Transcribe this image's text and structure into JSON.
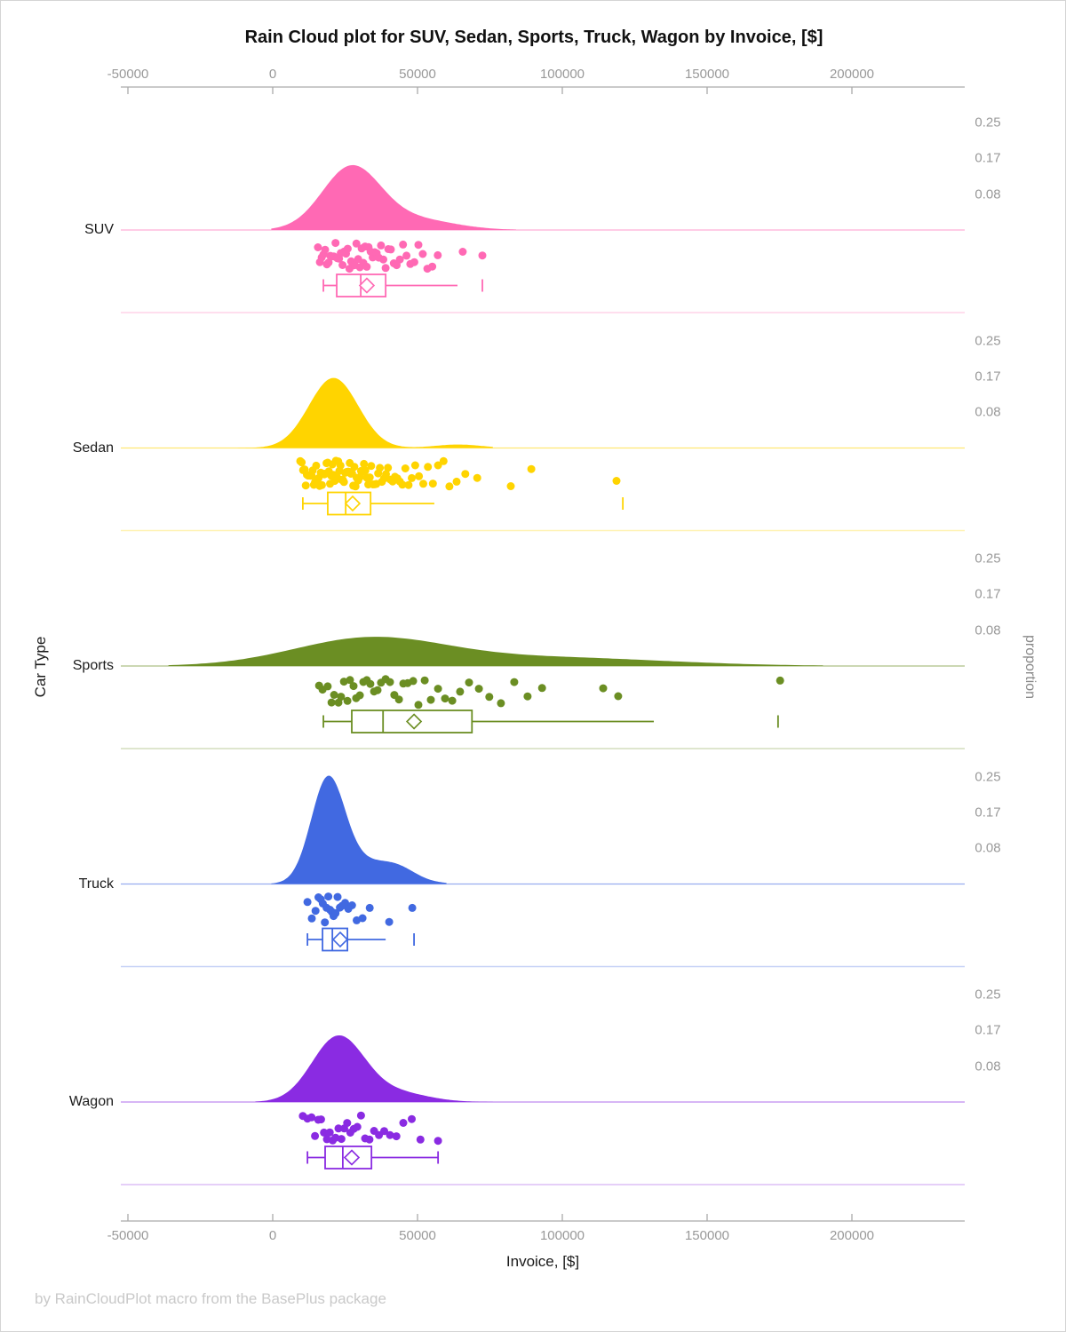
{
  "title": "Rain Cloud plot for SUV, Sedan, Sports, Truck, Wagon by Invoice, [$]",
  "footer": "by RainCloudPlot macro from the BasePlus package",
  "y_axis_label": "Car Type",
  "proportion_axis_label": "proportion",
  "chart_data": {
    "type": "raincloud",
    "x_axis": {
      "label": "Invoice, [$]",
      "ticks": [
        {
          "value": -50000,
          "label": "-50000"
        },
        {
          "value": 0,
          "label": "0"
        },
        {
          "value": 50000,
          "label": "50000"
        },
        {
          "value": 100000,
          "label": "100000"
        },
        {
          "value": 150000,
          "label": "150000"
        },
        {
          "value": 200000,
          "label": "200000"
        }
      ]
    },
    "proportion_ticks": [
      {
        "value": 0.25,
        "label": "0.25"
      },
      {
        "value": 0.17,
        "label": "0.17"
      },
      {
        "value": 0.08,
        "label": "0.08"
      }
    ],
    "series": [
      {
        "label": "SUV",
        "color": "#FF69B4",
        "density": {
          "components": [
            {
              "mu": 27000,
              "sd": 10000,
              "w": 1
            },
            {
              "mu": 48000,
              "sd": 14000,
              "w": 0.18
            }
          ],
          "peak_proportion": 0.151,
          "clip": [
            -500,
            84000
          ]
        },
        "points": [
          15600,
          16300,
          16900,
          17500,
          18100,
          18700,
          19300,
          19900,
          20500,
          21100,
          21700,
          22300,
          22900,
          23500,
          24100,
          24700,
          25300,
          25900,
          26500,
          27100,
          27700,
          28300,
          28900,
          29500,
          30100,
          30700,
          31300,
          31900,
          32500,
          33100,
          33800,
          34500,
          35200,
          35900,
          36600,
          37400,
          38200,
          39000,
          39900,
          40800,
          41800,
          42800,
          43900,
          45000,
          46200,
          47500,
          48900,
          50300,
          51800,
          53400,
          55100,
          57000,
          65600,
          72400
        ],
        "box": {
          "whisker_low": 17500,
          "q1": 22100,
          "median": 30400,
          "q3": 39000,
          "whisker_high": 63800,
          "mean": 32500,
          "outliers": [
            72400
          ],
          "cap_low": true,
          "cap_high": false
        }
      },
      {
        "label": "Sedan",
        "color": "#FFD400",
        "density": {
          "components": [
            {
              "mu": 21000,
              "sd": 8500,
              "w": 1
            },
            {
              "mu": 64000,
              "sd": 8000,
              "w": 0.05
            }
          ],
          "peak_proportion": 0.163,
          "clip": [
            -13500,
            76000
          ]
        },
        "points": [
          9500,
          10000,
          10500,
          11000,
          11400,
          11800,
          12200,
          12600,
          13000,
          13400,
          13800,
          14200,
          14600,
          15000,
          15400,
          15800,
          16200,
          16600,
          17000,
          17400,
          17800,
          18200,
          18600,
          19000,
          19400,
          19800,
          20200,
          20600,
          21000,
          21400,
          21800,
          22200,
          22600,
          23000,
          23400,
          23800,
          24200,
          24600,
          25000,
          25400,
          25800,
          26200,
          26600,
          27000,
          27400,
          27800,
          28200,
          28600,
          29000,
          29500,
          30000,
          30500,
          31000,
          31500,
          32000,
          32500,
          33000,
          33500,
          34000,
          34600,
          35200,
          35800,
          36400,
          37000,
          37700,
          38400,
          39100,
          39800,
          40600,
          41400,
          42200,
          43000,
          43900,
          44800,
          45800,
          46900,
          48000,
          49200,
          50500,
          52000,
          53600,
          55300,
          57100,
          59000,
          61000,
          63500,
          66500,
          70600,
          82200,
          89300,
          118700
        ],
        "box": {
          "whisker_low": 10400,
          "q1": 19000,
          "median": 25200,
          "q3": 33800,
          "whisker_high": 55800,
          "mean": 27600,
          "outliers": [
            120900
          ],
          "cap_low": true,
          "cap_high": false
        }
      },
      {
        "label": "Sports",
        "color": "#6B8E23",
        "density": {
          "components": [
            {
              "mu": 33000,
              "sd": 26000,
              "w": 1
            },
            {
              "mu": 95000,
              "sd": 40000,
              "w": 0.32
            }
          ],
          "peak_proportion": 0.068,
          "clip": [
            -36000,
            190000
          ]
        },
        "points": [
          16000,
          17200,
          19000,
          20300,
          21200,
          22700,
          23600,
          24600,
          25800,
          26700,
          27900,
          28800,
          30100,
          31300,
          32500,
          33700,
          35000,
          36200,
          37400,
          39000,
          40500,
          42000,
          43600,
          45100,
          46600,
          48500,
          50300,
          52500,
          54600,
          57100,
          59500,
          62000,
          64700,
          67800,
          71200,
          74800,
          78800,
          83400,
          88000,
          93000,
          114100,
          119300,
          175200
        ],
        "box": {
          "whisker_low": 17500,
          "q1": 27300,
          "median": 38100,
          "q3": 68800,
          "whisker_high": 131600,
          "mean": 48800,
          "outliers": [
            174500
          ],
          "cap_low": true,
          "cap_high": false
        }
      },
      {
        "label": "Truck",
        "color": "#4169E1",
        "density": {
          "components": [
            {
              "mu": 19000,
              "sd": 5800,
              "w": 1
            },
            {
              "mu": 33000,
              "sd": 11000,
              "w": 0.22
            },
            {
              "mu": 44000,
              "sd": 5500,
              "w": 0.06
            }
          ],
          "peak_proportion": 0.252,
          "clip": [
            -500,
            60000
          ]
        },
        "points": [
          12000,
          13500,
          14800,
          15800,
          16600,
          17300,
          18000,
          18600,
          19200,
          19800,
          20400,
          21000,
          21700,
          22400,
          23200,
          24000,
          25000,
          26100,
          27400,
          29000,
          31000,
          33500,
          40200,
          48200
        ],
        "box": {
          "whisker_low": 12000,
          "q1": 17200,
          "median": 20600,
          "q3": 25800,
          "whisker_high": 39000,
          "mean": 23300,
          "outliers": [
            48800
          ],
          "cap_low": true,
          "cap_high": false
        }
      },
      {
        "label": "Wagon",
        "color": "#8A2BE2",
        "density": {
          "components": [
            {
              "mu": 22500,
              "sd": 9000,
              "w": 1
            },
            {
              "mu": 42000,
              "sd": 11000,
              "w": 0.15
            }
          ],
          "peak_proportion": 0.155,
          "clip": [
            -6000,
            76000
          ]
        },
        "points": [
          10400,
          12000,
          13400,
          14600,
          15700,
          16700,
          17700,
          18700,
          19700,
          20700,
          21700,
          22700,
          23700,
          24700,
          25700,
          26800,
          28000,
          29200,
          30500,
          31900,
          33400,
          35000,
          36700,
          38500,
          40500,
          42700,
          45100,
          48000,
          51000,
          57100
        ],
        "box": {
          "whisker_low": 12000,
          "q1": 18100,
          "median": 24200,
          "q3": 34100,
          "whisker_high": 57100,
          "mean": 27300,
          "outliers": [],
          "cap_low": true,
          "cap_high": true
        }
      }
    ]
  }
}
